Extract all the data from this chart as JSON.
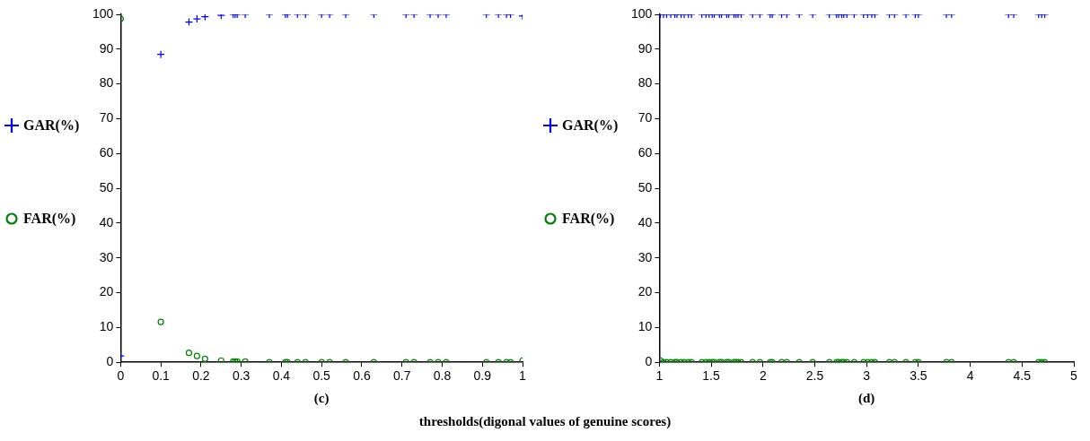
{
  "chart_data": [
    {
      "type": "scatter",
      "xlabel": "(c)",
      "xlim": [
        0,
        1
      ],
      "xticks": [
        0,
        0.1,
        0.2,
        0.3,
        0.4,
        0.5,
        0.6,
        0.7,
        0.8,
        0.9,
        1
      ],
      "ylim": [
        0,
        100
      ],
      "yticks": [
        0,
        10,
        20,
        30,
        40,
        50,
        60,
        70,
        80,
        90,
        100
      ],
      "grid": false,
      "legend": "left",
      "annotations": [
        "thresholds(digonal values of genuine scores)"
      ],
      "series": [
        {
          "name": "GAR(%)",
          "color": "#0000ff",
          "marker": "cross",
          "x": [
            0,
            0.1,
            0.17,
            0.19,
            0.21,
            0.25,
            0.28,
            0.285,
            0.29,
            0.31,
            0.37,
            0.41,
            0.415,
            0.44,
            0.46,
            0.5,
            0.52,
            0.56,
            0.63,
            0.71,
            0.73,
            0.77,
            0.79,
            0.81,
            0.91,
            0.94,
            0.96,
            0.97,
            1
          ],
          "values": [
            1.8,
            88.5,
            97.8,
            98.7,
            99.3,
            99.7,
            100,
            100,
            100,
            100,
            100,
            100,
            100,
            100,
            100,
            100,
            100,
            100,
            100,
            100,
            100,
            100,
            100,
            100,
            100,
            100,
            100,
            100,
            99.5
          ]
        },
        {
          "name": "FAR(%)",
          "color": "#008000",
          "marker": "circle",
          "x": [
            0,
            0.1,
            0.17,
            0.19,
            0.21,
            0.25,
            0.28,
            0.285,
            0.29,
            0.31,
            0.37,
            0.41,
            0.415,
            0.44,
            0.46,
            0.5,
            0.52,
            0.56,
            0.63,
            0.71,
            0.73,
            0.77,
            0.79,
            0.81,
            0.91,
            0.94,
            0.96,
            0.97,
            1
          ],
          "values": [
            98.7,
            11.6,
            2.7,
            1.8,
            1,
            0.5,
            0.2,
            0.2,
            0.2,
            0.2,
            0,
            0,
            0,
            0,
            0,
            0,
            0,
            0,
            0,
            0,
            0,
            0,
            0,
            0,
            0,
            0,
            0,
            0,
            0.5
          ]
        }
      ]
    },
    {
      "type": "scatter",
      "xlabel": "(d)",
      "xlim": [
        1,
        5
      ],
      "xticks": [
        1,
        1.5,
        2,
        2.5,
        3,
        3.5,
        4,
        4.5,
        5
      ],
      "ylim": [
        0,
        100
      ],
      "yticks": [
        0,
        10,
        20,
        30,
        40,
        50,
        60,
        70,
        80,
        90,
        100
      ],
      "grid": false,
      "legend": "left",
      "series": [
        {
          "name": "GAR(%)",
          "color": "#0000ff",
          "marker": "cross",
          "x": [
            1.01,
            1.04,
            1.07,
            1.11,
            1.15,
            1.17,
            1.21,
            1.24,
            1.28,
            1.31,
            1.41,
            1.45,
            1.48,
            1.51,
            1.53,
            1.58,
            1.6,
            1.65,
            1.67,
            1.72,
            1.74,
            1.76,
            1.79,
            1.9,
            1.97,
            2.07,
            2.09,
            2.18,
            2.23,
            2.35,
            2.48,
            2.64,
            2.71,
            2.73,
            2.76,
            2.78,
            2.81,
            2.88,
            2.97,
            3.01,
            3.05,
            3.08,
            3.22,
            3.27,
            3.38,
            3.47,
            3.5,
            3.77,
            3.82,
            4.37,
            4.42,
            4.66,
            4.69,
            4.72
          ],
          "values": [
            100,
            100,
            100,
            100,
            100,
            100,
            100,
            100,
            100,
            100,
            100,
            100,
            100,
            100,
            100,
            100,
            100,
            100,
            100,
            100,
            100,
            100,
            100,
            100,
            100,
            100,
            100,
            100,
            100,
            100,
            100,
            100,
            100,
            100,
            100,
            100,
            100,
            100,
            100,
            100,
            100,
            100,
            100,
            100,
            100,
            100,
            100,
            100,
            100,
            100,
            100,
            100,
            100,
            100
          ]
        },
        {
          "name": "FAR(%)",
          "color": "#008000",
          "marker": "circle",
          "x": [
            1.01,
            1.04,
            1.07,
            1.11,
            1.15,
            1.17,
            1.21,
            1.24,
            1.28,
            1.31,
            1.41,
            1.45,
            1.48,
            1.51,
            1.53,
            1.58,
            1.6,
            1.65,
            1.67,
            1.72,
            1.74,
            1.76,
            1.79,
            1.9,
            1.97,
            2.07,
            2.09,
            2.18,
            2.23,
            2.35,
            2.48,
            2.64,
            2.71,
            2.73,
            2.76,
            2.78,
            2.81,
            2.88,
            2.97,
            3.01,
            3.05,
            3.08,
            3.22,
            3.27,
            3.38,
            3.47,
            3.5,
            3.77,
            3.82,
            4.37,
            4.42,
            4.66,
            4.69,
            4.72
          ],
          "values": [
            0.5,
            0,
            0,
            0,
            0,
            0,
            0,
            0,
            0,
            0,
            0,
            0,
            0,
            0,
            0,
            0,
            0,
            0,
            0,
            0,
            0,
            0,
            0,
            0,
            0,
            0,
            0,
            0,
            0,
            0,
            0,
            0,
            0,
            0,
            0,
            0,
            0,
            0,
            0,
            0,
            0,
            0,
            0,
            0,
            0,
            0,
            0,
            0,
            0,
            0,
            0,
            0,
            0,
            0
          ]
        }
      ]
    }
  ]
}
